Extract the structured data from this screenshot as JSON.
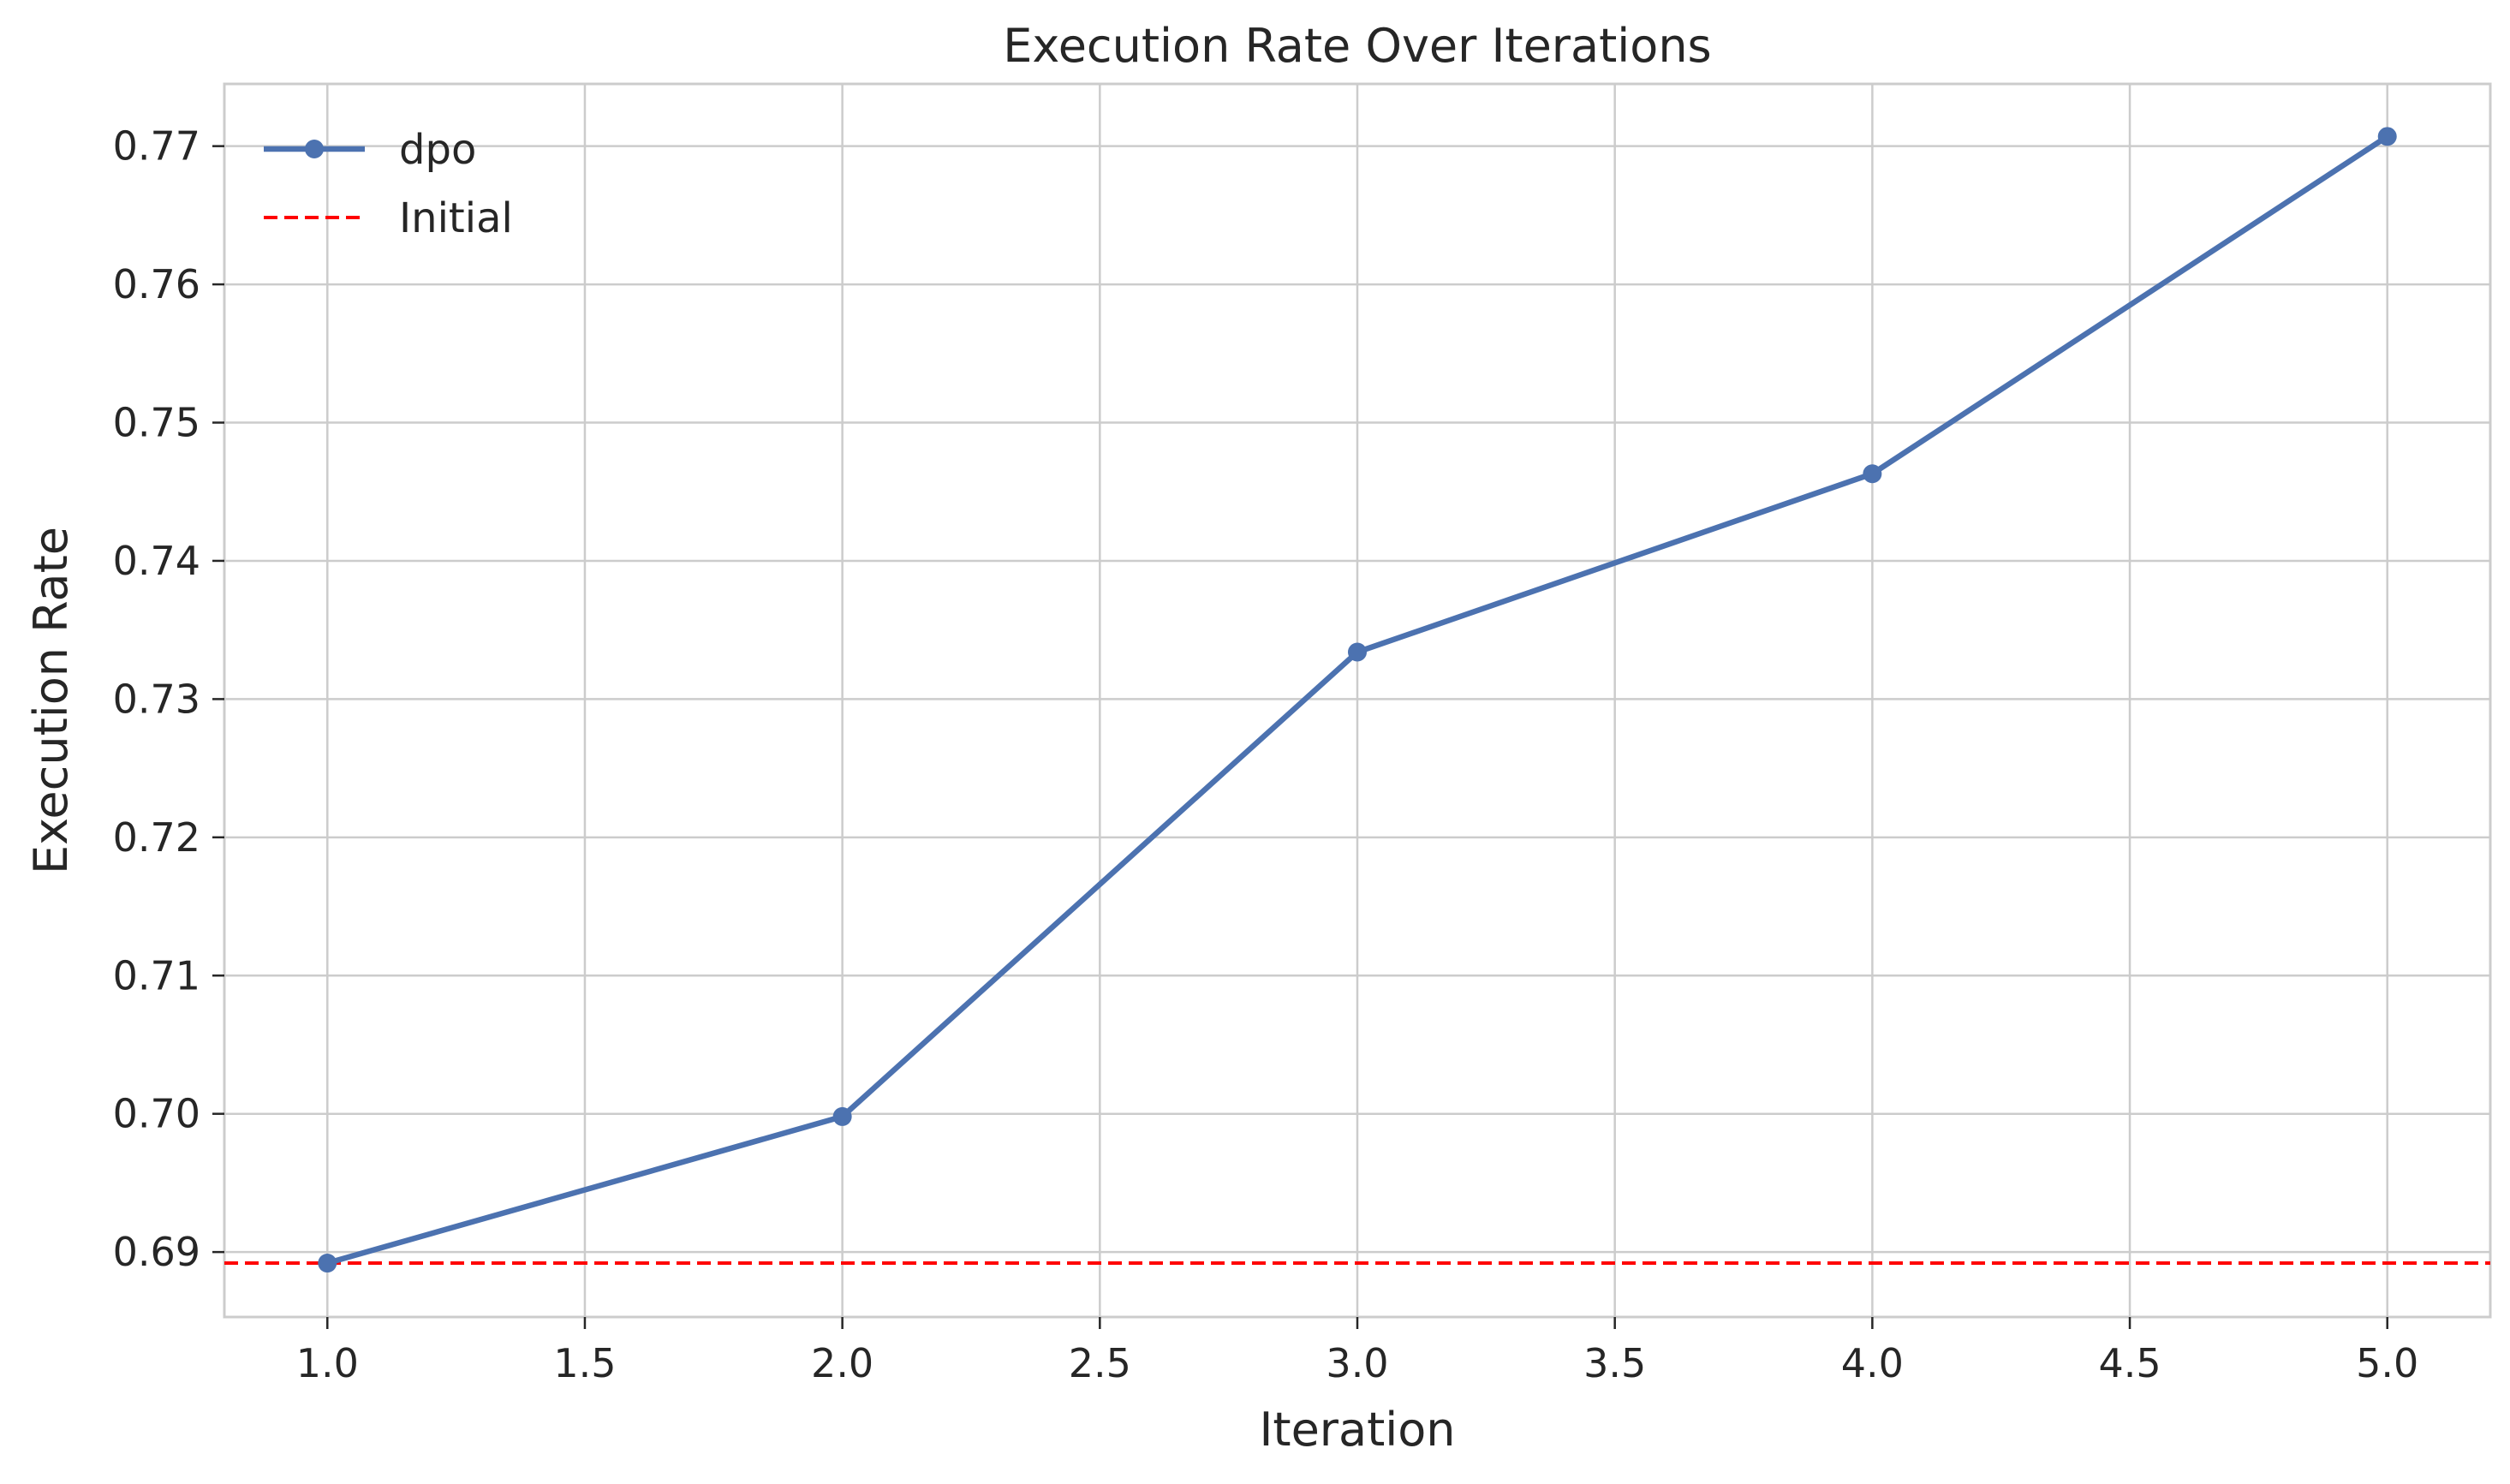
{
  "chart_data": {
    "type": "line",
    "title": "Execution Rate Over Iterations",
    "xlabel": "Iteration",
    "ylabel": "Execution Rate",
    "xlim": [
      0.8,
      5.2
    ],
    "ylim": [
      0.6853,
      0.7745
    ],
    "xticks": [
      1.0,
      1.5,
      2.0,
      2.5,
      3.0,
      3.5,
      4.0,
      4.5,
      5.0
    ],
    "xtick_labels": [
      "1.0",
      "1.5",
      "2.0",
      "2.5",
      "3.0",
      "3.5",
      "4.0",
      "4.5",
      "5.0"
    ],
    "yticks": [
      0.69,
      0.7,
      0.71,
      0.72,
      0.73,
      0.74,
      0.75,
      0.76,
      0.77
    ],
    "ytick_labels": [
      "0.69",
      "0.70",
      "0.71",
      "0.72",
      "0.73",
      "0.74",
      "0.75",
      "0.76",
      "0.77"
    ],
    "grid": true,
    "legend_position": "top-left",
    "series": [
      {
        "name": "dpo",
        "style": "solid line with circle markers",
        "color": "#4c72b0",
        "x": [
          1.0,
          2.0,
          3.0,
          4.0,
          5.0
        ],
        "y": [
          0.6892,
          0.6998,
          0.7334,
          0.7463,
          0.7707
        ]
      }
    ],
    "reference_lines": [
      {
        "name": "Initial",
        "style": "dashed horizontal line",
        "color": "#ff0000",
        "y": 0.6892
      }
    ]
  }
}
